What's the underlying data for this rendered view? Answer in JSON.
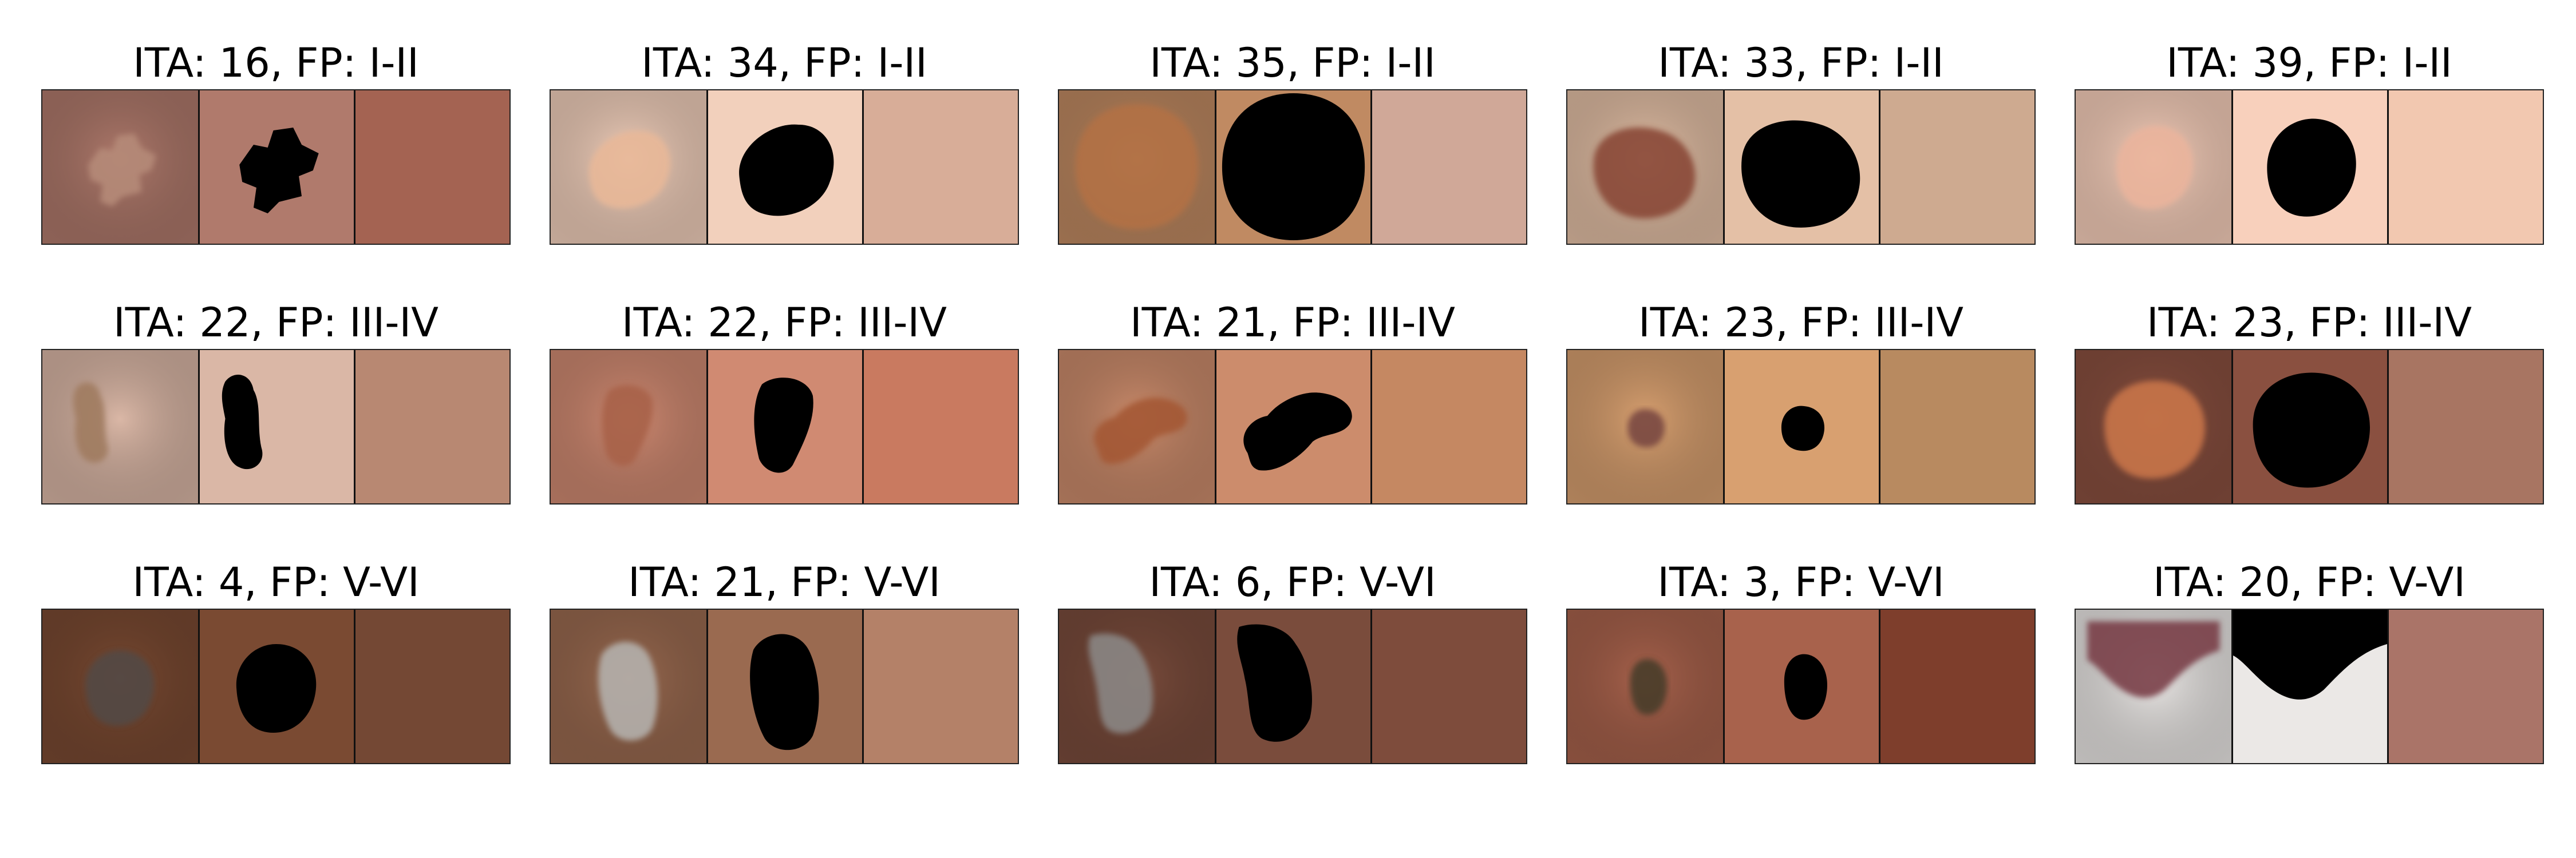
{
  "rows": [
    {
      "items": [
        {
          "title": "ITA: 16, FP: I-II",
          "skin": "#b07a6c",
          "lesion": "#b58a78",
          "swatch": "#a46352",
          "shape": 0
        },
        {
          "title": "ITA: 34, FP: I-II",
          "skin": "#f2d0bc",
          "lesion": "#e8b898",
          "swatch": "#d8ad98",
          "shape": 1
        },
        {
          "title": "ITA: 35, FP: I-II",
          "skin": "#c08a62",
          "lesion": "#b27144",
          "swatch": "#d0a898",
          "shape": 2
        },
        {
          "title": "ITA: 33, FP: I-II",
          "skin": "#e4c0a6",
          "lesion": "#8a4a38",
          "swatch": "#ceaa90",
          "shape": 3
        },
        {
          "title": "ITA: 39, FP: I-II",
          "skin": "#f8d0bc",
          "lesion": "#eab49c",
          "swatch": "#f2c8b0",
          "shape": 4
        }
      ]
    },
    {
      "items": [
        {
          "title": "ITA: 22, FP: III-IV",
          "skin": "#dab7a6",
          "lesion": "#a07c60",
          "swatch": "#b88872",
          "shape": 5
        },
        {
          "title": "ITA: 22, FP: III-IV",
          "skin": "#d08a72",
          "lesion": "#a86248",
          "swatch": "#c97a60",
          "shape": 6
        },
        {
          "title": "ITA: 21, FP: III-IV",
          "skin": "#cc8c6c",
          "lesion": "#a45834",
          "swatch": "#c58862",
          "shape": 7
        },
        {
          "title": "ITA: 23, FP: III-IV",
          "skin": "#d8a070",
          "lesion": "#7a4a42",
          "swatch": "#b88a60",
          "shape": 8
        },
        {
          "title": "ITA: 23, FP: III-IV",
          "skin": "#8a5040",
          "lesion": "#c87448",
          "swatch": "#a87562",
          "shape": 9
        }
      ]
    },
    {
      "items": [
        {
          "title": "ITA: 4, FP: V-VI",
          "skin": "#7a4a32",
          "lesion": "#524844",
          "swatch": "#744834",
          "shape": 10
        },
        {
          "title": "ITA: 21, FP: V-VI",
          "skin": "#9a6a50",
          "lesion": "#b4b0ac",
          "swatch": "#b48168",
          "shape": 11
        },
        {
          "title": "ITA: 6, FP: V-VI",
          "skin": "#7a4c3c",
          "lesion": "#8a8684",
          "swatch": "#7e4c3c",
          "shape": 12
        },
        {
          "title": "ITA: 3, FP: V-VI",
          "skin": "#a8624c",
          "lesion": "#4a3c2c",
          "swatch": "#7e3e2c",
          "shape": 13
        },
        {
          "title": "ITA: 20, FP: V-VI",
          "skin": "#ebe8e6",
          "lesion": "#7a4048",
          "swatch": "#aa7468",
          "shape": 14
        }
      ]
    }
  ]
}
